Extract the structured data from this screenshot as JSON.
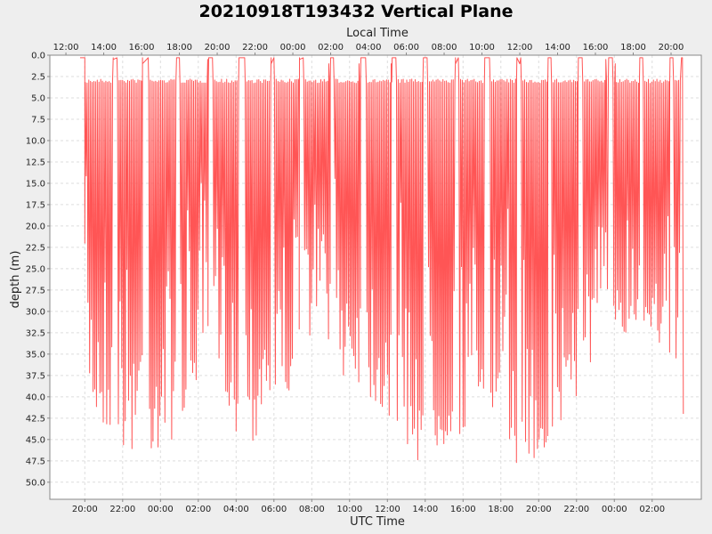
{
  "chart_data": {
    "type": "line",
    "title": "20210918T193432 Vertical Plane",
    "xlabel": "UTC Time",
    "x2label": "Local Time",
    "ylabel": "depth (m)",
    "x_unit": "hours since first UTC tick",
    "xlim": [
      -1.85,
      32.6
    ],
    "ylim": [
      0.0,
      52.0
    ],
    "y_inverted": true,
    "grid": true,
    "bottom_ticks": [
      "20:00",
      "22:00",
      "00:00",
      "02:00",
      "04:00",
      "06:00",
      "08:00",
      "10:00",
      "12:00",
      "14:00",
      "16:00",
      "18:00",
      "20:00",
      "22:00",
      "00:00",
      "02:00"
    ],
    "top_ticks": [
      "12:00",
      "14:00",
      "16:00",
      "18:00",
      "20:00",
      "22:00",
      "00:00",
      "02:00",
      "04:00",
      "06:00",
      "08:00",
      "10:00",
      "12:00",
      "14:00",
      "16:00",
      "18:00",
      "20:00"
    ],
    "top_ticks_start_offset_hours": -1.0,
    "y_ticks": [
      "0.0",
      "2.5",
      "5.0",
      "7.5",
      "10.0",
      "12.5",
      "15.0",
      "17.5",
      "20.0",
      "22.5",
      "25.0",
      "27.5",
      "30.0",
      "32.5",
      "35.0",
      "37.5",
      "40.0",
      "42.5",
      "45.0",
      "47.5",
      "50.0"
    ],
    "series": [
      {
        "color": "#ff5555",
        "dive_cycle_hours": 0.09,
        "shallow_turn_depth": 2.8,
        "surface_intervals": [
          [
            -0.25,
            0.0
          ],
          [
            1.5,
            1.7
          ],
          [
            3.05,
            3.35
          ],
          [
            4.85,
            5.0
          ],
          [
            6.55,
            6.75
          ],
          [
            8.15,
            8.45
          ],
          [
            9.85,
            10.0
          ],
          [
            11.35,
            11.55
          ],
          [
            13.0,
            13.15
          ],
          [
            14.6,
            14.85
          ],
          [
            16.25,
            16.45
          ],
          [
            17.9,
            18.1
          ],
          [
            19.6,
            19.75
          ],
          [
            21.15,
            21.4
          ],
          [
            22.85,
            23.05
          ],
          [
            24.5,
            24.65
          ],
          [
            26.1,
            26.3
          ],
          [
            27.7,
            27.9
          ],
          [
            29.35,
            29.5
          ],
          [
            30.95,
            31.1
          ],
          [
            31.55,
            31.6
          ]
        ],
        "max_depth_envelope": [
          [
            0.0,
            39.0
          ],
          [
            0.3,
            41.0
          ],
          [
            0.5,
            43.5
          ],
          [
            1.0,
            44.0
          ],
          [
            1.4,
            44.5
          ],
          [
            1.8,
            45.5
          ],
          [
            2.3,
            47.5
          ],
          [
            3.0,
            47.0
          ],
          [
            3.4,
            47.5
          ],
          [
            4.0,
            46.5
          ],
          [
            4.6,
            45.0
          ],
          [
            5.2,
            43.0
          ],
          [
            5.8,
            40.0
          ],
          [
            6.3,
            36.5
          ],
          [
            6.8,
            38.0
          ],
          [
            7.4,
            40.5
          ],
          [
            8.0,
            42.0
          ],
          [
            8.6,
            43.5
          ],
          [
            9.0,
            46.0
          ],
          [
            9.5,
            43.0
          ],
          [
            10.0,
            42.0
          ],
          [
            10.6,
            40.5
          ],
          [
            11.2,
            38.0
          ],
          [
            11.7,
            34.0
          ],
          [
            12.2,
            31.0
          ],
          [
            12.7,
            32.0
          ],
          [
            13.2,
            35.5
          ],
          [
            13.8,
            38.5
          ],
          [
            14.4,
            38.5
          ],
          [
            15.1,
            40.5
          ],
          [
            15.8,
            43.0
          ],
          [
            16.4,
            44.0
          ],
          [
            17.0,
            46.0
          ],
          [
            17.6,
            48.0
          ],
          [
            18.0,
            49.0
          ],
          [
            18.6,
            47.0
          ],
          [
            19.1,
            46.5
          ],
          [
            19.8,
            45.0
          ],
          [
            20.4,
            43.0
          ],
          [
            21.1,
            42.0
          ],
          [
            21.6,
            44.0
          ],
          [
            22.2,
            46.0
          ],
          [
            22.9,
            48.0
          ],
          [
            23.5,
            49.5
          ],
          [
            24.1,
            48.5
          ],
          [
            24.7,
            46.5
          ],
          [
            25.3,
            44.0
          ],
          [
            25.9,
            41.0
          ],
          [
            26.6,
            38.0
          ],
          [
            27.2,
            35.0
          ],
          [
            27.8,
            34.0
          ],
          [
            28.3,
            33.0
          ],
          [
            28.9,
            32.0
          ],
          [
            29.5,
            34.0
          ],
          [
            30.1,
            33.0
          ],
          [
            30.6,
            34.5
          ],
          [
            31.0,
            38.0
          ],
          [
            31.4,
            42.0
          ]
        ],
        "dips": [
          {
            "x": 0.0,
            "depth": 0.5
          },
          {
            "x": 0.0,
            "depth": 22.0
          },
          {
            "x": 1.5,
            "depth": 0.5
          },
          {
            "x": 3.05,
            "depth": 1.0
          },
          {
            "x": 6.5,
            "depth": 0.5
          },
          {
            "x": 8.0,
            "depth": 44.0
          },
          {
            "x": 9.85,
            "depth": 1.0
          },
          {
            "x": 11.35,
            "depth": 0.5
          },
          {
            "x": 12.9,
            "depth": 1.0
          },
          {
            "x": 14.5,
            "depth": 1.0
          },
          {
            "x": 16.2,
            "depth": 1.0
          },
          {
            "x": 19.6,
            "depth": 1.0
          },
          {
            "x": 23.0,
            "depth": 1.0
          },
          {
            "x": 27.55,
            "depth": 0.5
          },
          {
            "x": 28.05,
            "depth": 1.0
          },
          {
            "x": 31.65,
            "depth": 42.0
          }
        ]
      }
    ]
  }
}
